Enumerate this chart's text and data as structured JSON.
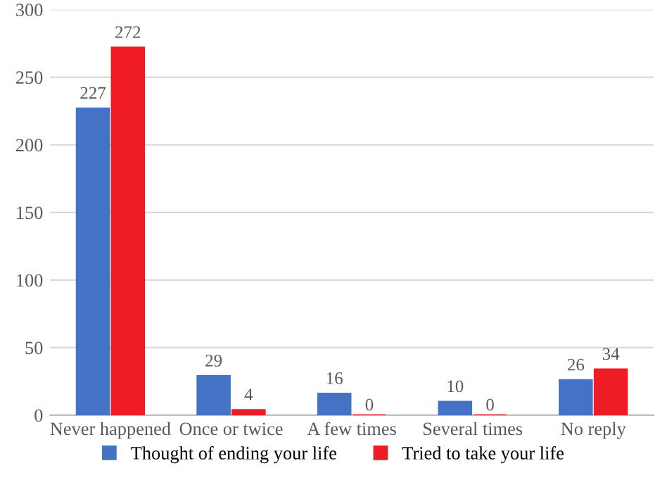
{
  "chart_data": {
    "type": "bar",
    "categories": [
      "Never happened",
      "Once or twice",
      "A few times",
      "Several times",
      "No reply"
    ],
    "series": [
      {
        "name": "Thought of ending your life",
        "color": "#4472c4",
        "values": [
          227,
          29,
          16,
          10,
          26
        ]
      },
      {
        "name": "Tried to take your life",
        "color": "#ee1c25",
        "values": [
          272,
          4,
          0,
          0,
          34
        ]
      }
    ],
    "ylim": [
      0,
      300
    ],
    "yticks": [
      0,
      50,
      100,
      150,
      200,
      250,
      300
    ],
    "grid": "y",
    "legend": "bottom",
    "data_labels": true
  }
}
